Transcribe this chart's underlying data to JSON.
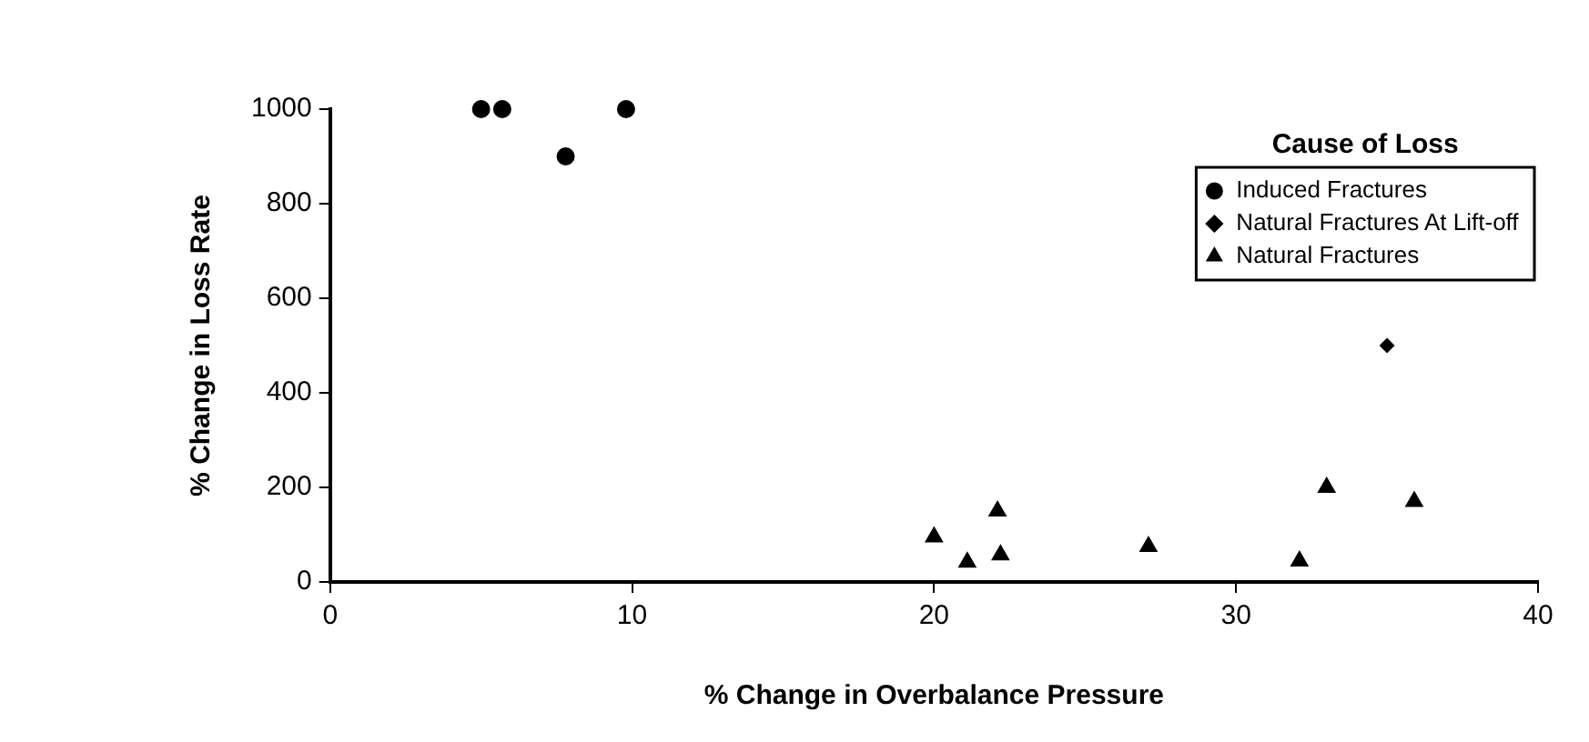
{
  "chart_data": {
    "type": "scatter",
    "xlabel": "% Change in Overbalance Pressure",
    "ylabel": "% Change in Loss Rate",
    "legend_title": "Cause of Loss",
    "legend": "top right",
    "grid": false,
    "xlim": [
      0,
      40
    ],
    "xticks": [
      0,
      10,
      20,
      30,
      40
    ],
    "ylim": [
      0,
      1000
    ],
    "yticks": [
      0,
      200,
      400,
      600,
      800,
      1000
    ],
    "series": [
      {
        "name": "Induced Fractures",
        "color": "#000000",
        "marker": "circle",
        "x": [
          5.0,
          5.7,
          7.8,
          9.8
        ],
        "values": [
          1000,
          1000,
          900,
          1000
        ]
      },
      {
        "name": "Natural Fractures At Lift-off",
        "color": "#000000",
        "marker": "diamond",
        "x": [
          35
        ],
        "values": [
          500
        ]
      },
      {
        "name": "Natural Fractures",
        "color": "#000000",
        "marker": "triangle",
        "x": [
          20.0,
          21.1,
          22.1,
          22.2,
          27.1,
          32.1,
          33.0,
          35.9
        ],
        "values": [
          95,
          42,
          150,
          57,
          75,
          44,
          200,
          170
        ]
      }
    ]
  }
}
